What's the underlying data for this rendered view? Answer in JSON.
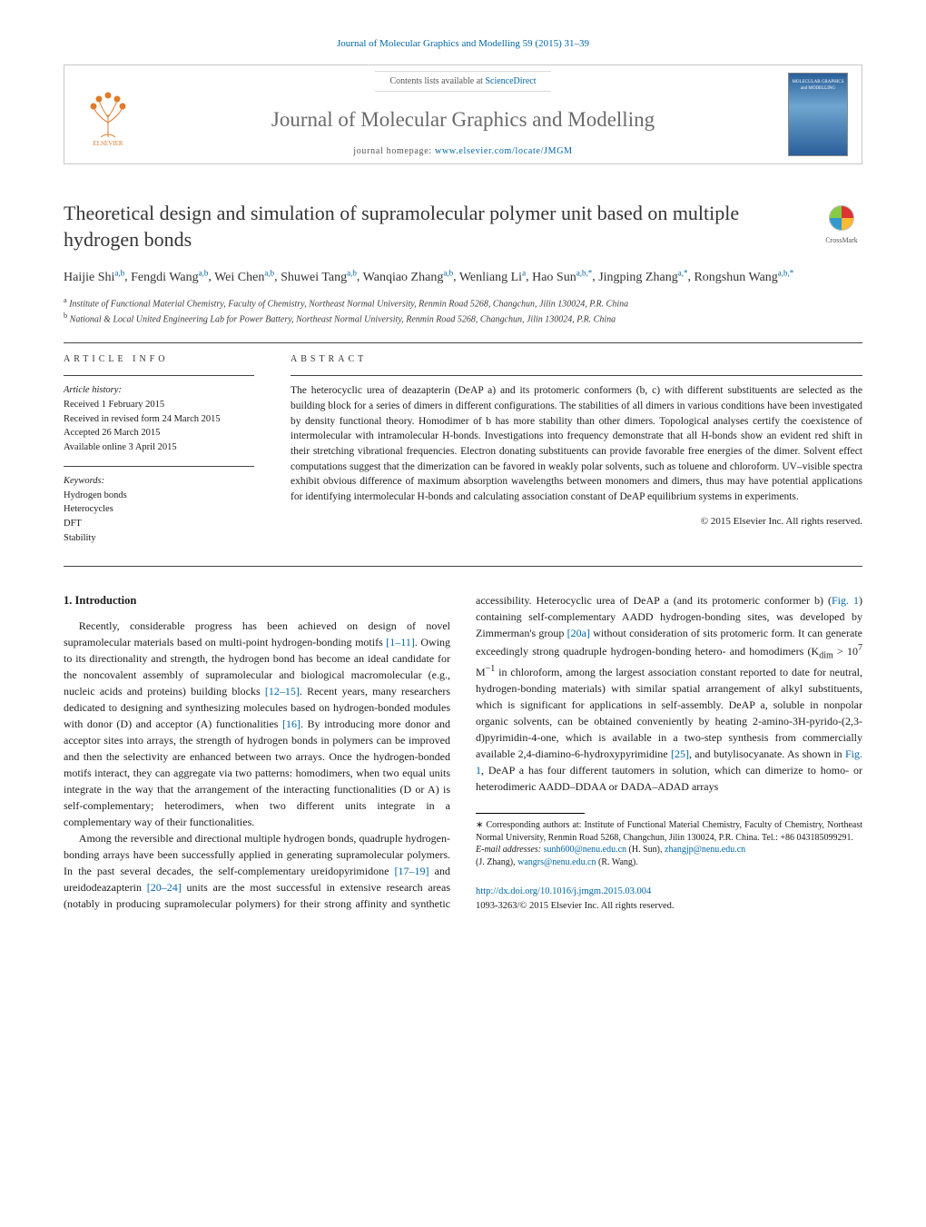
{
  "header": {
    "citation": "Journal of Molecular Graphics and Modelling 59 (2015) 31–39",
    "contents_prefix": "Contents lists available at ",
    "contents_link": "ScienceDirect",
    "journal_name": "Journal of Molecular Graphics and Modelling",
    "homepage_prefix": "journal homepage: ",
    "homepage_link": "www.elsevier.com/locate/JMGM",
    "cover_text": "MOLECULAR GRAPHICS and MODELLING"
  },
  "crossmark_label": "CrossMark",
  "title": "Theoretical design and simulation of supramolecular polymer unit based on multiple hydrogen bonds",
  "authors": [
    {
      "name": "Haijie Shi",
      "aff": "a,b"
    },
    {
      "name": "Fengdi Wang",
      "aff": "a,b"
    },
    {
      "name": "Wei Chen",
      "aff": "a,b"
    },
    {
      "name": "Shuwei Tang",
      "aff": "a,b"
    },
    {
      "name": "Wanqiao Zhang",
      "aff": "a,b"
    },
    {
      "name": "Wenliang Li",
      "aff": "a"
    },
    {
      "name": "Hao Sun",
      "aff": "a,b,*"
    },
    {
      "name": "Jingping Zhang",
      "aff": "a,*"
    },
    {
      "name": "Rongshun Wang",
      "aff": "a,b,*"
    }
  ],
  "affiliations": {
    "a": "Institute of Functional Material Chemistry, Faculty of Chemistry, Northeast Normal University, Renmin Road 5268, Changchun, Jilin 130024, P.R. China",
    "b": "National & Local United Engineering Lab for Power Battery, Northeast Normal University, Renmin Road 5268, Changchun, Jilin 130024, P.R. China"
  },
  "article_info": {
    "heading": "ARTICLE INFO",
    "history_label": "Article history:",
    "history": [
      "Received 1 February 2015",
      "Received in revised form 24 March 2015",
      "Accepted 26 March 2015",
      "Available online 3 April 2015"
    ],
    "keywords_label": "Keywords:",
    "keywords": [
      "Hydrogen bonds",
      "Heterocycles",
      "DFT",
      "Stability"
    ]
  },
  "abstract": {
    "heading": "ABSTRACT",
    "text": "The heterocyclic urea of deazapterin (DeAP a) and its protomeric conformers (b, c) with different substituents are selected as the building block for a series of dimers in different configurations. The stabilities of all dimers in various conditions have been investigated by density functional theory. Homodimer of b has more stability than other dimers. Topological analyses certify the coexistence of intermolecular with intramolecular H-bonds. Investigations into frequency demonstrate that all H-bonds show an evident red shift in their stretching vibrational frequencies. Electron donating substituents can provide favorable free energies of the dimer. Solvent effect computations suggest that the dimerization can be favored in weakly polar solvents, such as toluene and chloroform. UV–visible spectra exhibit obvious difference of maximum absorption wavelengths between monomers and dimers, thus may have potential applications for identifying intermolecular H-bonds and calculating association constant of DeAP equilibrium systems in experiments.",
    "copyright": "© 2015 Elsevier Inc. All rights reserved."
  },
  "intro": {
    "heading": "1. Introduction",
    "p1a": "Recently, considerable progress has been achieved on design of novel supramolecular materials based on multi-point hydrogen-bonding motifs ",
    "r1": "[1–11]",
    "p1b": ". Owing to its directionality and strength, the hydrogen bond has become an ideal candidate for the noncovalent assembly of supramolecular and biological macromolecular (e.g., nucleic acids and proteins) building blocks ",
    "r2": "[12–15]",
    "p1c": ". Recent years, many researchers dedicated to designing and synthesizing molecules based on hydrogen-bonded modules with donor (D) and acceptor (A) functionalities ",
    "r3": "[16]",
    "p1d": ". By introducing more donor and acceptor sites into arrays, the strength of hydrogen bonds in polymers can be improved and then the selectivity are enhanced between two arrays. Once the hydrogen-bonded motifs interact, they can aggregate via two patterns: homodimers, when two equal units integrate in the way that the arrangement of the interacting functionalities (D or A) is self-complementary; heterodimers, when two different units integrate in a complementary way of their functionalities.",
    "p2a": "Among the reversible and directional multiple hydrogen bonds, quadruple hydrogen-bonding arrays have been successfully applied in generating supramolecular polymers. In the past several decades, the self-complementary ureidopyrimidone ",
    "r4": "[17–19]",
    "p2b": " and ureidodeazapterin ",
    "r5": "[20–24]",
    "p2c": " units are the most successful in extensive research areas (notably in producing supramolecular polymers) for their strong affinity and synthetic accessibility. Heterocyclic urea of DeAP a (and its protomeric conformer b) (",
    "r6": "Fig. 1",
    "p2d": ") containing self-complementary AADD hydrogen-bonding sites, was developed by Zimmerman's group ",
    "r7": "[20a]",
    "p2e": " without consideration of sits protomeric form. It can generate exceedingly strong quadruple hydrogen-bonding hetero- and homodimers (K",
    "kdim_sub": "dim",
    "p2f": " > 10",
    "exp7": "7",
    "p2g": " M",
    "expm1": "−1",
    "p2h": " in chloroform, among the largest association constant reported to date for neutral, hydrogen-bonding materials) with similar spatial arrangement of alkyl substituents, which is significant for applications in self-assembly. DeAP a, soluble in nonpolar organic solvents, can be obtained conveniently by heating 2-amino-3H-pyrido-(2,3-d)pyrimidin-4-one, which is available in a two-step synthesis from commercially available 2,4-diamino-6-hydroxypyrimidine ",
    "r8": "[25]",
    "p2i": ", and butylisocyanate. As shown in ",
    "r9": "Fig. 1",
    "p2j": ", DeAP a has four different tautomers in solution, which can dimerize to homo- or heterodimeric AADD–DDAA or DADA–ADAD arrays"
  },
  "footnotes": {
    "corr_label": "∗",
    "corr_text": "Corresponding authors at: Institute of Functional Material Chemistry, Faculty of Chemistry, Northeast Normal University, Renmin Road 5268, Changchun, Jilin 130024, P.R. China. Tel.: +86 043185099291.",
    "email_label": "E-mail addresses: ",
    "email1": "sunh600@nenu.edu.cn",
    "email1_who": " (H. Sun), ",
    "email2": "zhangjp@nenu.edu.cn",
    "email2_who": " (J. Zhang), ",
    "email3": "wangrs@nenu.edu.cn",
    "email3_who": " (R. Wang)."
  },
  "doi": {
    "url": "http://dx.doi.org/10.1016/j.jmgm.2015.03.004",
    "issn_copy": "1093-3263/© 2015 Elsevier Inc. All rights reserved."
  },
  "colors": {
    "link": "#0066a6",
    "text": "#1a1a1a",
    "gray_title": "#6a6a6a",
    "border": "#c8c8c8"
  }
}
